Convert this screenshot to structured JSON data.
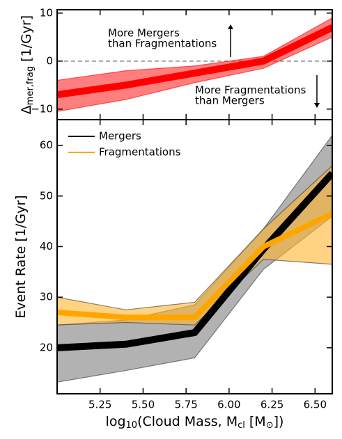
{
  "chart_data": [
    {
      "type": "line",
      "y_label": [
        "Δ",
        "mer,frag",
        " [1/Gyr]"
      ],
      "x": [
        5.0,
        5.4,
        5.8,
        6.2,
        6.6
      ],
      "xlim": [
        5.0,
        6.6
      ],
      "xticks": [
        5.25,
        5.5,
        5.75,
        6.0,
        6.25,
        6.5
      ],
      "ylim": [
        -12.2,
        10.7
      ],
      "yticks": [
        {
          "value": -10,
          "label": "−10"
        },
        0,
        10
      ],
      "hline": 0,
      "series": [
        {
          "color": "#ff0000",
          "values": [
            -7,
            -5,
            -2.5,
            0,
            7
          ],
          "lower": [
            -10.5,
            -8,
            -4.5,
            -1.5,
            5
          ],
          "upper": [
            -4,
            -2,
            -1,
            1,
            9
          ]
        }
      ],
      "annotations": [
        {
          "lines": [
            "More Mergers",
            "than Fragmentations"
          ]
        },
        {
          "lines": [
            "More Fragmentations",
            "than Mergers"
          ]
        }
      ]
    },
    {
      "type": "line",
      "x_label": [
        "log",
        "10",
        "(Cloud Mass, M",
        "cl",
        " [M",
        "⊙",
        "])"
      ],
      "y_label": [
        "Event Rate [1/Gyr]"
      ],
      "x": [
        5.0,
        5.4,
        5.8,
        6.2,
        6.6
      ],
      "xlim": [
        5.0,
        6.6
      ],
      "xticks": [
        {
          "value": 5.25,
          "label": "5.25"
        },
        {
          "value": 5.5,
          "label": "5.50"
        },
        {
          "value": 5.75,
          "label": "5.75"
        },
        {
          "value": 6.0,
          "label": "6.00"
        },
        {
          "value": 6.25,
          "label": "6.25"
        },
        {
          "value": 6.5,
          "label": "6.50"
        }
      ],
      "ylim": [
        10.9,
        65.1
      ],
      "yticks": [
        20,
        30,
        40,
        50,
        60
      ],
      "legend": "upper left",
      "series": [
        {
          "name": "Mergers",
          "color": "#000000",
          "band_color": "#7f7f7f",
          "values": [
            20,
            20.7,
            23,
            39.5,
            54.5
          ],
          "lower": [
            13.2,
            15.5,
            18,
            35.5,
            46
          ],
          "upper": [
            24.5,
            25.5,
            28.5,
            43.5,
            62
          ]
        },
        {
          "name": "Fragmentations",
          "color": "#ffa500",
          "band_color": "#ffb52e",
          "values": [
            27,
            26,
            26,
            40,
            46.5
          ],
          "lower": [
            24.5,
            25,
            24.5,
            37.5,
            36.5
          ],
          "upper": [
            30,
            27.5,
            29,
            43.5,
            56
          ]
        }
      ]
    }
  ]
}
